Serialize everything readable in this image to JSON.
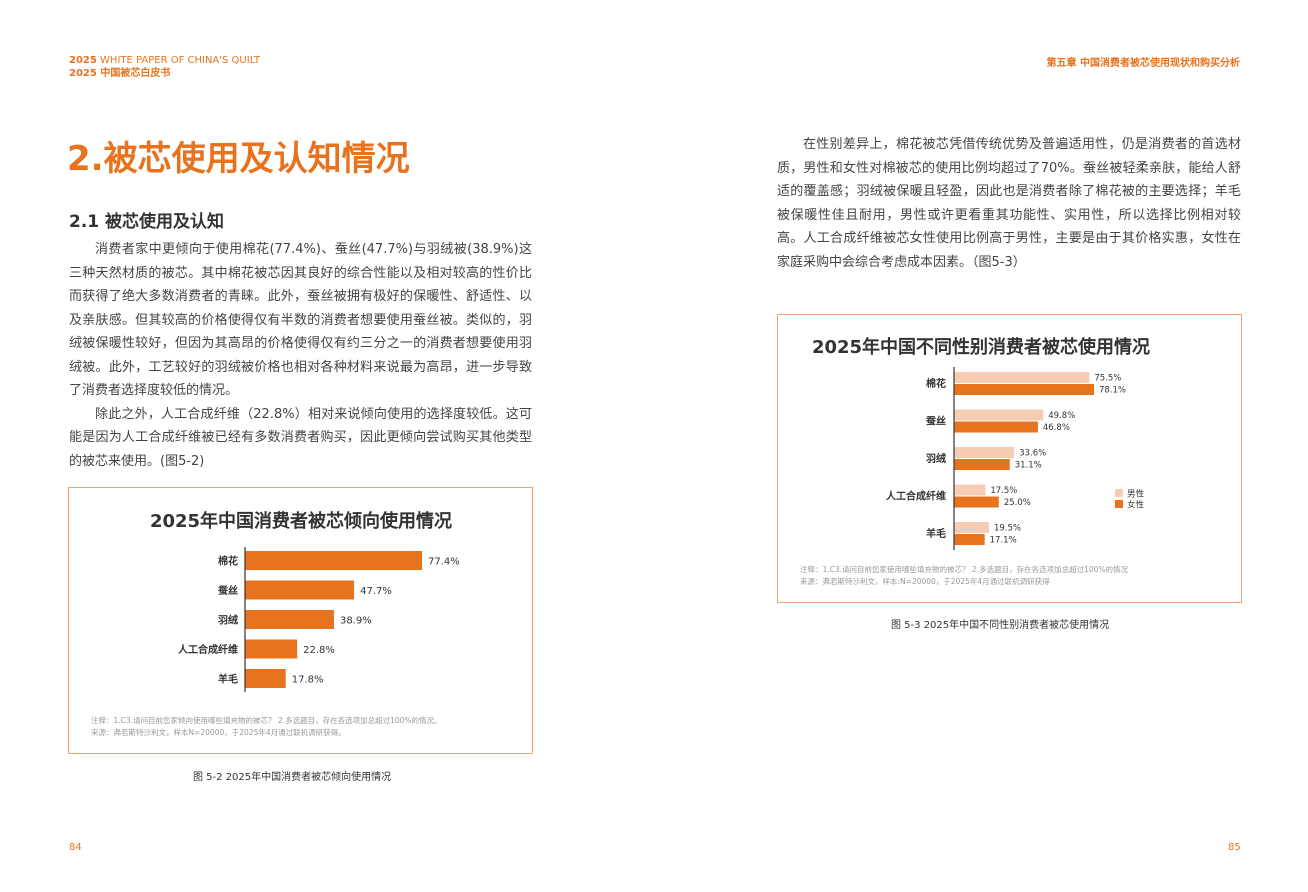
{
  "header": {
    "left_line1_year": "2025",
    "left_line1_text": "WHITE PAPER OF CHINA'S QUILT",
    "left_line2": "2025 中国被芯白皮书",
    "right": "第五章 中国消费者被芯使用现状和购买分析"
  },
  "main_title": "2.被芯使用及认知情况",
  "section_title": "2.1 被芯使用及认知",
  "left_paragraphs": [
    "消费者家中更倾向于使用棉花(77.4%)、蚕丝(47.7%)与羽绒被(38.9%)这三种天然材质的被芯。其中棉花被芯因其良好的综合性能以及相对较高的性价比而获得了绝大多数消费者的青睐。此外，蚕丝被拥有极好的保暖性、舒适性、以及亲肤感。但其较高的价格使得仅有半数的消费者想要使用蚕丝被。类似的，羽绒被保暖性较好，但因为其高昂的价格使得仅有约三分之一的消费者想要使用羽绒被。此外，工艺较好的羽绒被价格也相对各种材料来说最为高昂，进一步导致了消费者选择度较低的情况。",
    "除此之外，人工合成纤维（22.8%）相对来说倾向使用的选择度较低。这可能是因为人工合成纤维被已经有多数消费者购买，因此更倾向尝试购买其他类型的被芯来使用。(图5-2)"
  ],
  "right_paragraphs": [
    "在性别差异上，棉花被芯凭借传统优势及普遍适用性，仍是消费者的首选材质，男性和女性对棉被芯的使用比例均超过了70%。蚕丝被轻柔亲肤，能给人舒适的覆盖感；羽绒被保暖且轻盈，因此也是消费者除了棉花被的主要选择；羊毛被保暖性佳且耐用，男性或许更看重其功能性、实用性，所以选择比例相对较高。人工合成纤维被芯女性使用比例高于男性，主要是由于其价格实惠，女性在家庭采购中会综合考虑成本因素。（图5-3）"
  ],
  "chart1": {
    "note_line1": "注释：1.C3.请问目前您家倾向使用哪些填充物的被芯？ 2.多选题目，存在各选项加总超过100%的情况。",
    "note_line2": "来源：弗若斯特沙利文，样本N=20000，于2025年4月通过联机调研获得。",
    "caption": "图 5-2  2025年中国消费者被芯倾向使用情况"
  },
  "chart2": {
    "note_line1": "注释：1.C3.请问目前您家使用哪些填充物的被芯？ 2.多选题目，存在各选项加总超过100%的情况",
    "note_line2": "来源：弗若斯特沙利文，样本:N=20000，于2025年4月通过联机调研获得",
    "caption": "图 5-3  2025年中国不同性别消费者被芯使用情况"
  },
  "chart_data": [
    {
      "type": "bar",
      "orientation": "horizontal",
      "title": "2025年中国消费者被芯倾向使用情况",
      "categories": [
        "棉花",
        "蚕丝",
        "羽绒",
        "人工合成纤维",
        "羊毛"
      ],
      "values": [
        77.4,
        47.7,
        38.9,
        22.8,
        17.8
      ],
      "value_labels": [
        "77.4%",
        "47.7%",
        "38.9%",
        "22.8%",
        "17.8%"
      ],
      "color": "#e8731f"
    },
    {
      "type": "bar",
      "orientation": "horizontal",
      "title": "2025年中国不同性别消费者被芯使用情况",
      "categories": [
        "棉花",
        "蚕丝",
        "羽绒",
        "人工合成纤维",
        "羊毛"
      ],
      "series": [
        {
          "name": "男性",
          "values": [
            75.5,
            49.8,
            33.6,
            17.5,
            19.5
          ],
          "labels": [
            "75.5%",
            "49.8%",
            "33.6%",
            "17.5%",
            "19.5%"
          ],
          "color": "#f6cdb2"
        },
        {
          "name": "女性",
          "values": [
            78.1,
            46.8,
            31.1,
            25.0,
            17.1
          ],
          "labels": [
            "78.1%",
            "46.8%",
            "31.1%",
            "25.0%",
            "17.1%"
          ],
          "color": "#e8731f"
        }
      ],
      "legend": "right"
    }
  ],
  "page_numbers": {
    "left": "84",
    "right": "85"
  }
}
